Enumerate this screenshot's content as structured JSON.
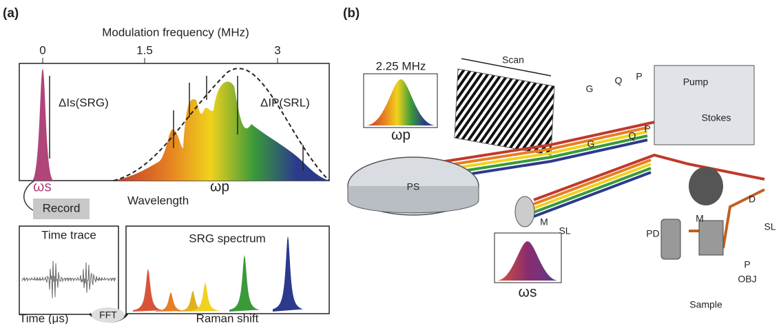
{
  "panel_a": {
    "label": "(a)",
    "axis_title": "Modulation frequency (MHz)",
    "ticks": [
      0,
      1.5,
      3
    ],
    "srg_label": "ΔIs(SRG)",
    "srl_label": "ΔIP(SRL)",
    "omega_s": "ωs",
    "omega_p": "ωp",
    "wavelength": "Wavelength",
    "record": "Record",
    "time_trace": "Time trace",
    "time_axis": "Time (μs)",
    "fft": "FFT",
    "srg_spectrum": "SRG spectrum",
    "raman_shift": "Raman shift"
  },
  "panel_b": {
    "label": "(b)",
    "frequency": "2.25 MHz",
    "omega_p": "ωp",
    "scan": "Scan",
    "omega_s": "ωs",
    "components": [
      "PS",
      "G",
      "Q",
      "P",
      "Pump",
      "Stokes",
      "G",
      "Q",
      "P",
      "M",
      "SL",
      "D",
      "M",
      "SL",
      "PD",
      "P",
      "OBJ",
      "Sample"
    ]
  }
}
